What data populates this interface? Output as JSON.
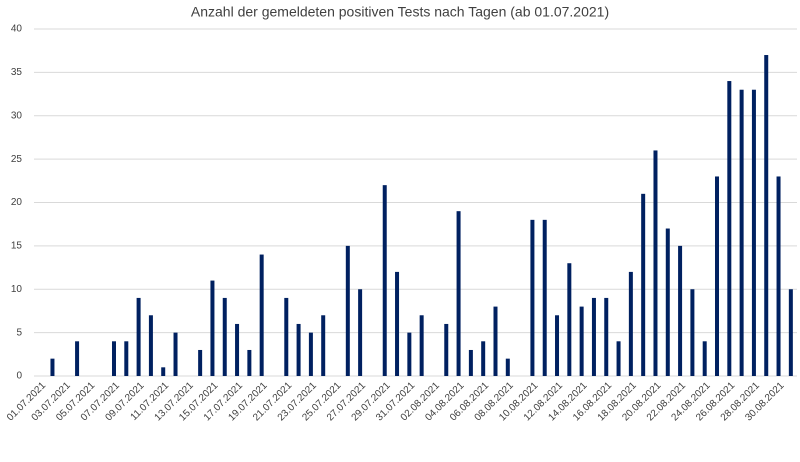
{
  "chart_data": {
    "type": "bar",
    "title": "Anzahl der gemeldeten positiven Tests nach Tagen (ab 01.07.2021)",
    "categories": [
      "01.07.2021",
      null,
      "03.07.2021",
      null,
      "05.07.2021",
      null,
      "07.07.2021",
      null,
      "09.07.2021",
      null,
      "11.07.2021",
      null,
      "13.07.2021",
      null,
      "15.07.2021",
      null,
      "17.07.2021",
      null,
      "19.07.2021",
      null,
      "21.07.2021",
      null,
      "23.07.2021",
      null,
      "25.07.2021",
      null,
      "27.07.2021",
      null,
      "29.07.2021",
      null,
      "31.07.2021",
      null,
      "02.08.2021",
      null,
      "04.08.2021",
      null,
      "06.08.2021",
      null,
      "08.08.2021",
      null,
      "10.08.2021",
      null,
      "12.08.2021",
      null,
      "14.08.2021",
      null,
      "16.08.2021",
      null,
      "18.08.2021",
      null,
      "20.08.2021",
      null,
      "22.08.2021",
      null,
      "24.08.2021",
      null,
      "26.08.2021",
      null,
      "28.08.2021",
      null,
      "30.08.2021",
      null
    ],
    "values": [
      0,
      2,
      0,
      4,
      0,
      0,
      4,
      4,
      9,
      7,
      1,
      5,
      0,
      3,
      11,
      9,
      6,
      3,
      14,
      0,
      9,
      6,
      5,
      7,
      0,
      15,
      10,
      0,
      22,
      12,
      5,
      7,
      0,
      6,
      19,
      3,
      4,
      8,
      2,
      0,
      18,
      18,
      7,
      13,
      8,
      9,
      9,
      4,
      12,
      21,
      26,
      17,
      15,
      10,
      4,
      23,
      34,
      33,
      33,
      37,
      23,
      10
    ],
    "color": "#002060",
    "ylim": [
      0,
      40
    ],
    "yticks": [
      0,
      5,
      10,
      15,
      20,
      25,
      30,
      35,
      40
    ],
    "grid": true
  }
}
